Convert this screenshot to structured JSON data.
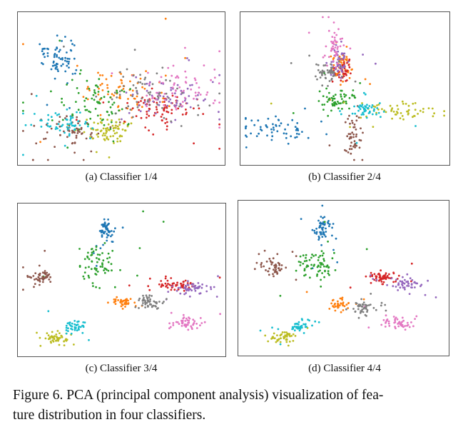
{
  "figure": {
    "caption_line1": "Figure 6. PCA (principal component analysis) visualization of fea-",
    "caption_line2": "ture distribution in four classifiers."
  },
  "panels": [
    {
      "id": "a",
      "caption": "(a) Classifier 1/4"
    },
    {
      "id": "b",
      "caption": "(b) Classifier 2/4"
    },
    {
      "id": "c",
      "caption": "(c) Classifier 3/4"
    },
    {
      "id": "d",
      "caption": "(d) Classifier 4/4"
    }
  ],
  "colors": {
    "blue": "#1f77b4",
    "orange": "#ff7f0e",
    "green": "#2ca02c",
    "red": "#d62728",
    "purple": "#9467bd",
    "brown": "#8c564b",
    "pink": "#e377c2",
    "gray": "#7f7f7f",
    "olive": "#bcbd22",
    "cyan": "#17becf"
  },
  "chart_data": [
    {
      "type": "scatter",
      "title": "(a) Classifier 1/4",
      "xlim": [
        0,
        100
      ],
      "ylim": [
        0,
        100
      ],
      "series": [
        {
          "name": "class-blue",
          "color": "blue",
          "clusters": [
            {
              "c": [
                18,
                70
              ],
              "s": [
                5,
                5
              ],
              "n": 70
            }
          ]
        },
        {
          "name": "class-orange",
          "color": "orange",
          "clusters": [
            {
              "c": [
                50,
                48
              ],
              "s": [
                10,
                8
              ],
              "n": 80
            }
          ]
        },
        {
          "name": "class-green",
          "color": "green",
          "clusters": [
            {
              "c": [
                38,
                38
              ],
              "s": [
                9,
                8
              ],
              "n": 80
            }
          ]
        },
        {
          "name": "class-red",
          "color": "red",
          "clusters": [
            {
              "c": [
                72,
                35
              ],
              "s": [
                9,
                6
              ],
              "n": 80
            }
          ]
        },
        {
          "name": "class-purple",
          "color": "purple",
          "clusters": [
            {
              "c": [
                72,
                43
              ],
              "s": [
                9,
                6
              ],
              "n": 70
            }
          ]
        },
        {
          "name": "class-brown",
          "color": "brown",
          "clusters": [
            {
              "c": [
                25,
                22
              ],
              "s": [
                7,
                6
              ],
              "n": 70
            }
          ]
        },
        {
          "name": "class-pink",
          "color": "pink",
          "clusters": [
            {
              "c": [
                78,
                50
              ],
              "s": [
                9,
                7
              ],
              "n": 70
            }
          ]
        },
        {
          "name": "class-gray",
          "color": "gray",
          "clusters": [
            {
              "c": [
                60,
                45
              ],
              "s": [
                10,
                8
              ],
              "n": 60
            }
          ]
        },
        {
          "name": "class-olive",
          "color": "olive",
          "clusters": [
            {
              "c": [
                42,
                20
              ],
              "s": [
                6,
                4
              ],
              "n": 70
            }
          ]
        },
        {
          "name": "class-cyan",
          "color": "cyan",
          "clusters": [
            {
              "c": [
                22,
                27
              ],
              "s": [
                7,
                5
              ],
              "n": 60
            }
          ]
        }
      ]
    },
    {
      "type": "scatter",
      "title": "(b) Classifier 2/4",
      "xlim": [
        0,
        100
      ],
      "ylim": [
        0,
        100
      ],
      "series": [
        {
          "name": "class-blue",
          "color": "blue",
          "clusters": [
            {
              "c": [
                16,
                22
              ],
              "s": [
                9,
                5
              ],
              "n": 60
            }
          ]
        },
        {
          "name": "class-orange",
          "color": "orange",
          "clusters": [
            {
              "c": [
                48,
                65
              ],
              "s": [
                2.5,
                5
              ],
              "n": 50
            }
          ]
        },
        {
          "name": "class-green",
          "color": "green",
          "clusters": [
            {
              "c": [
                46,
                42
              ],
              "s": [
                4,
                4
              ],
              "n": 60
            }
          ]
        },
        {
          "name": "class-red",
          "color": "red",
          "clusters": [
            {
              "c": [
                49,
                62
              ],
              "s": [
                2,
                4
              ],
              "n": 40
            }
          ]
        },
        {
          "name": "class-purple",
          "color": "purple",
          "clusters": [
            {
              "c": [
                47,
                68
              ],
              "s": [
                2.5,
                5
              ],
              "n": 50
            }
          ]
        },
        {
          "name": "class-brown",
          "color": "brown",
          "clusters": [
            {
              "c": [
                54,
                17
              ],
              "s": [
                2,
                8
              ],
              "n": 50
            }
          ]
        },
        {
          "name": "class-pink",
          "color": "pink",
          "clusters": [
            {
              "c": [
                45,
                80
              ],
              "s": [
                2,
                7
              ],
              "n": 50
            }
          ]
        },
        {
          "name": "class-gray",
          "color": "gray",
          "clusters": [
            {
              "c": [
                41,
                62
              ],
              "s": [
                3.5,
                3
              ],
              "n": 50
            }
          ]
        },
        {
          "name": "class-olive",
          "color": "olive",
          "clusters": [
            {
              "c": [
                78,
                35
              ],
              "s": [
                10,
                3
              ],
              "n": 60
            }
          ]
        },
        {
          "name": "class-cyan",
          "color": "cyan",
          "clusters": [
            {
              "c": [
                61,
                35
              ],
              "s": [
                3.5,
                2.5
              ],
              "n": 50
            }
          ]
        }
      ]
    },
    {
      "type": "scatter",
      "title": "(c) Classifier 3/4",
      "xlim": [
        0,
        100
      ],
      "ylim": [
        0,
        100
      ],
      "series": [
        {
          "name": "class-blue",
          "color": "blue",
          "clusters": [
            {
              "c": [
                42,
                84
              ],
              "s": [
                1.8,
                4
              ],
              "n": 60
            }
          ]
        },
        {
          "name": "class-orange",
          "color": "orange",
          "clusters": [
            {
              "c": [
                51,
                35
              ],
              "s": [
                2.5,
                2
              ],
              "n": 40
            }
          ]
        },
        {
          "name": "class-green",
          "color": "green",
          "clusters": [
            {
              "c": [
                38,
                58
              ],
              "s": [
                5,
                7
              ],
              "n": 70
            }
          ]
        },
        {
          "name": "class-red",
          "color": "red",
          "clusters": [
            {
              "c": [
                77,
                46
              ],
              "s": [
                5,
                2
              ],
              "n": 60
            }
          ]
        },
        {
          "name": "class-purple",
          "color": "purple",
          "clusters": [
            {
              "c": [
                85,
                44
              ],
              "s": [
                4,
                2
              ],
              "n": 50
            }
          ]
        },
        {
          "name": "class-brown",
          "color": "brown",
          "clusters": [
            {
              "c": [
                10,
                52
              ],
              "s": [
                3,
                3
              ],
              "n": 50
            }
          ]
        },
        {
          "name": "class-pink",
          "color": "pink",
          "clusters": [
            {
              "c": [
                82,
                20
              ],
              "s": [
                4,
                2
              ],
              "n": 50
            }
          ]
        },
        {
          "name": "class-gray",
          "color": "gray",
          "clusters": [
            {
              "c": [
                64,
                34
              ],
              "s": [
                3,
                2.5
              ],
              "n": 50
            }
          ]
        },
        {
          "name": "class-olive",
          "color": "olive",
          "clusters": [
            {
              "c": [
                17,
                10
              ],
              "s": [
                3,
                2
              ],
              "n": 50
            }
          ]
        },
        {
          "name": "class-cyan",
          "color": "cyan",
          "clusters": [
            {
              "c": [
                26,
                18
              ],
              "s": [
                3,
                2
              ],
              "n": 40
            }
          ]
        }
      ]
    },
    {
      "type": "scatter",
      "title": "(d) Classifier 4/4",
      "xlim": [
        0,
        100
      ],
      "ylim": [
        0,
        100
      ],
      "series": [
        {
          "name": "class-blue",
          "color": "blue",
          "clusters": [
            {
              "c": [
                40,
                83
              ],
              "s": [
                1.8,
                4
              ],
              "n": 60
            }
          ]
        },
        {
          "name": "class-orange",
          "color": "orange",
          "clusters": [
            {
              "c": [
                48,
                32
              ],
              "s": [
                2.5,
                2
              ],
              "n": 40
            }
          ]
        },
        {
          "name": "class-green",
          "color": "green",
          "clusters": [
            {
              "c": [
                36,
                60
              ],
              "s": [
                5,
                6
              ],
              "n": 70
            }
          ]
        },
        {
          "name": "class-red",
          "color": "red",
          "clusters": [
            {
              "c": [
                70,
                50
              ],
              "s": [
                4,
                2
              ],
              "n": 60
            }
          ]
        },
        {
          "name": "class-purple",
          "color": "purple",
          "clusters": [
            {
              "c": [
                80,
                46
              ],
              "s": [
                4,
                2
              ],
              "n": 50
            }
          ]
        },
        {
          "name": "class-brown",
          "color": "brown",
          "clusters": [
            {
              "c": [
                15,
                57
              ],
              "s": [
                3,
                3
              ],
              "n": 50
            }
          ]
        },
        {
          "name": "class-pink",
          "color": "pink",
          "clusters": [
            {
              "c": [
                78,
                20
              ],
              "s": [
                4,
                2
              ],
              "n": 50
            }
          ]
        },
        {
          "name": "class-gray",
          "color": "gray",
          "clusters": [
            {
              "c": [
                60,
                30
              ],
              "s": [
                3,
                2.5
              ],
              "n": 50
            }
          ]
        },
        {
          "name": "class-olive",
          "color": "olive",
          "clusters": [
            {
              "c": [
                20,
                10
              ],
              "s": [
                3,
                2
              ],
              "n": 50
            }
          ]
        },
        {
          "name": "class-cyan",
          "color": "cyan",
          "clusters": [
            {
              "c": [
                28,
                17
              ],
              "s": [
                3,
                2
              ],
              "n": 40
            }
          ]
        }
      ]
    }
  ]
}
